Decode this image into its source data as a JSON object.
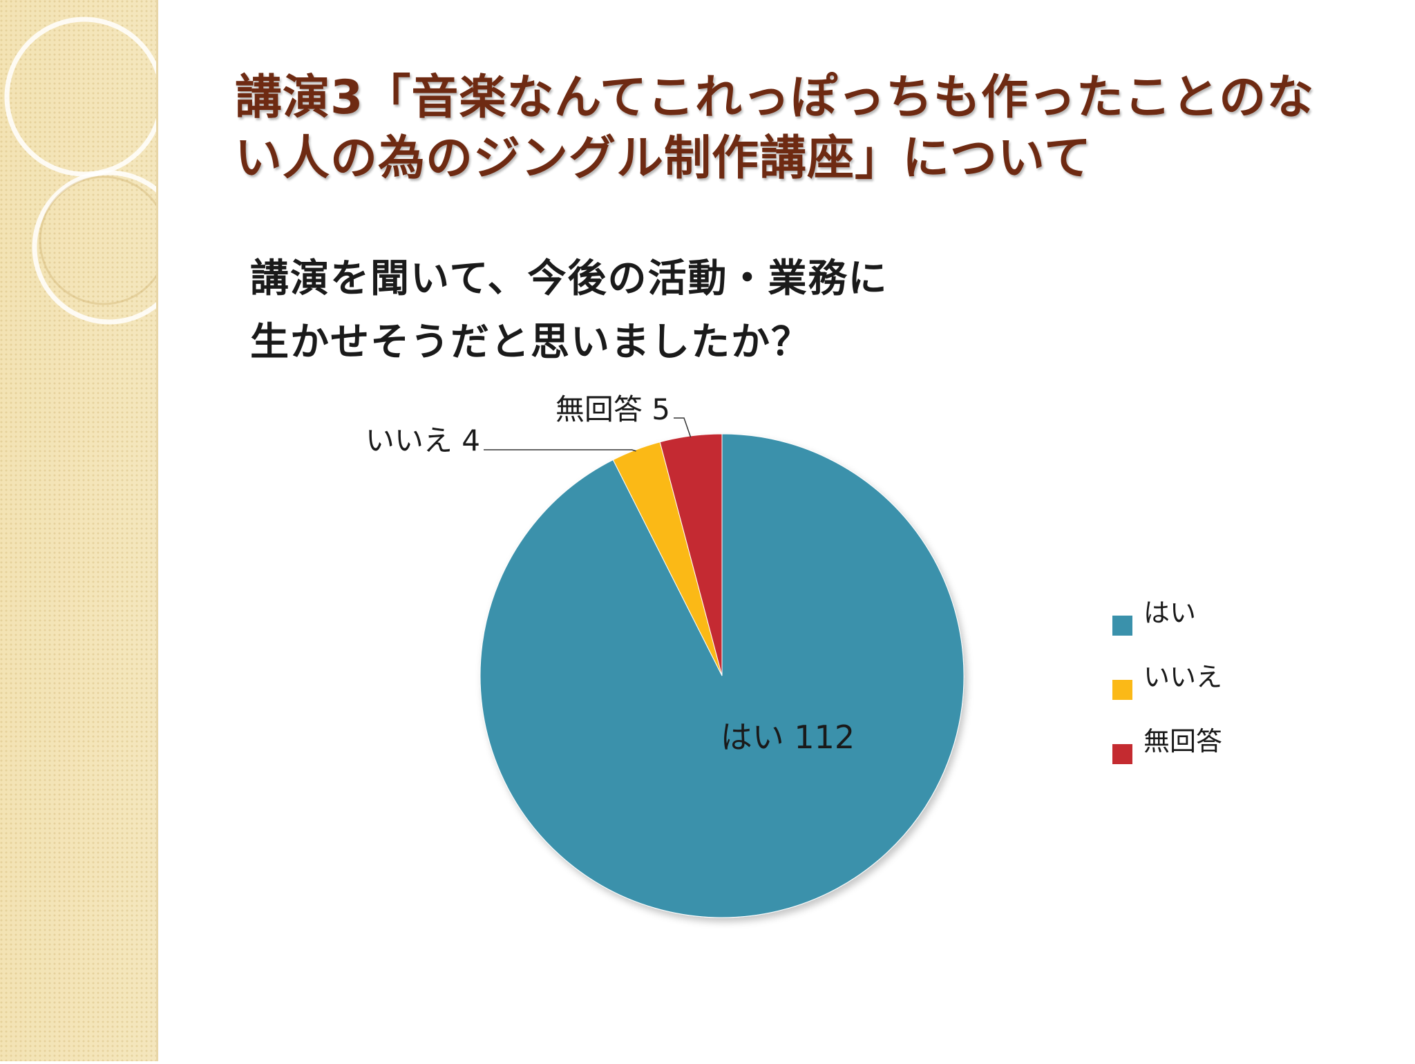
{
  "slide": {
    "title_line1": "講演3「音楽なんてこれっぽっちも作ったことのな",
    "title_line2": "い人の為のジングル制作講座」について",
    "question_line1": "講演を聞いて、今後の活動・業務に",
    "question_line2": "生かせそうだと思いましたか？"
  },
  "chart_data": {
    "type": "pie",
    "title": "",
    "categories": [
      "はい",
      "いいえ",
      "無回答"
    ],
    "values": [
      112,
      4,
      5
    ],
    "colors": [
      "#3a91ab",
      "#fbb917",
      "#c42b30"
    ],
    "data_labels": [
      "はい 112",
      "いいえ 4",
      "無回答 5"
    ],
    "legend": {
      "position": "right",
      "entries": [
        "はい",
        "いいえ",
        "無回答"
      ]
    },
    "start_angle": "top, clockwise"
  }
}
